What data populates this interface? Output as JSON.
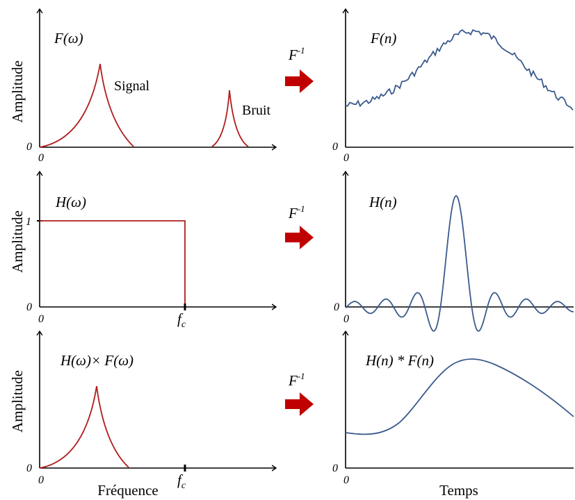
{
  "colors": {
    "frequency_curve": "#b01c1c",
    "time_curve": "#3a5a8c",
    "arrow": "#c00000",
    "axis": "#000000"
  },
  "left_panels": {
    "ylabel": "Amplitude",
    "xlabel": "Fréquence",
    "origin_label": "0",
    "cutoff_label": "f",
    "cutoff_subscript": "c",
    "top": {
      "title": "F(ω)",
      "signal_label": "Signal",
      "noise_label": "Bruit"
    },
    "middle": {
      "title": "H(ω)",
      "level_label": "1"
    },
    "bottom": {
      "title": "H(ω)× F(ω)"
    }
  },
  "right_panels": {
    "xlabel": "Temps",
    "origin_label": "0",
    "top": {
      "title": "F(n)"
    },
    "middle": {
      "title": "H(n)"
    },
    "bottom": {
      "title": "H(n) * F(n)"
    }
  },
  "transform_label": "F",
  "transform_superscript": "-1",
  "arrow_icons": [
    "right-arrow-icon",
    "right-arrow-icon",
    "right-arrow-icon"
  ]
}
